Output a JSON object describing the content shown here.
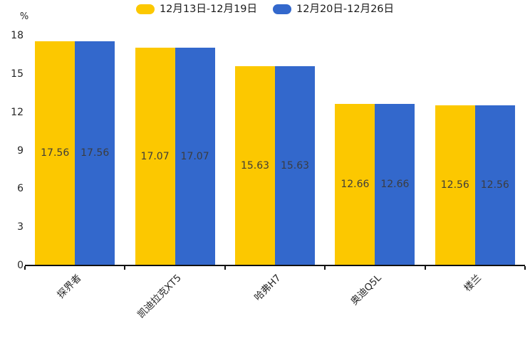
{
  "chart_data": {
    "type": "bar",
    "title": "",
    "unit_label": "%",
    "categories": [
      "探界者",
      "凯迪拉克XT5",
      "哈弗H7",
      "奥迪Q5L",
      "楼兰"
    ],
    "series": [
      {
        "name": "12月13日-12月19日",
        "color": "#FCC800",
        "values": [
          17.56,
          17.07,
          15.63,
          12.66,
          12.56
        ]
      },
      {
        "name": "12月20日-12月26日",
        "color": "#3368CC",
        "values": [
          17.56,
          17.07,
          15.63,
          12.66,
          12.56
        ]
      }
    ],
    "data_labels": {
      "visible": true,
      "position": "inside-center",
      "color": "#3d3d3d",
      "values": [
        [
          "17.56",
          "17.07",
          "15.63",
          "12.66",
          "12.56"
        ],
        [
          "17.56",
          "17.07",
          "15.63",
          "12.66",
          "12.56"
        ]
      ]
    },
    "xlabel": "",
    "ylabel": "%",
    "y_ticks": [
      "0",
      "3",
      "6",
      "9",
      "12",
      "15",
      "18"
    ],
    "ylim": [
      0,
      18
    ],
    "legend_position": "top-center",
    "grid": false,
    "background_color": "#ffffff",
    "axis_color": "#111111",
    "tick_label_color": "#262626",
    "category_label_rotation_deg": 45
  }
}
